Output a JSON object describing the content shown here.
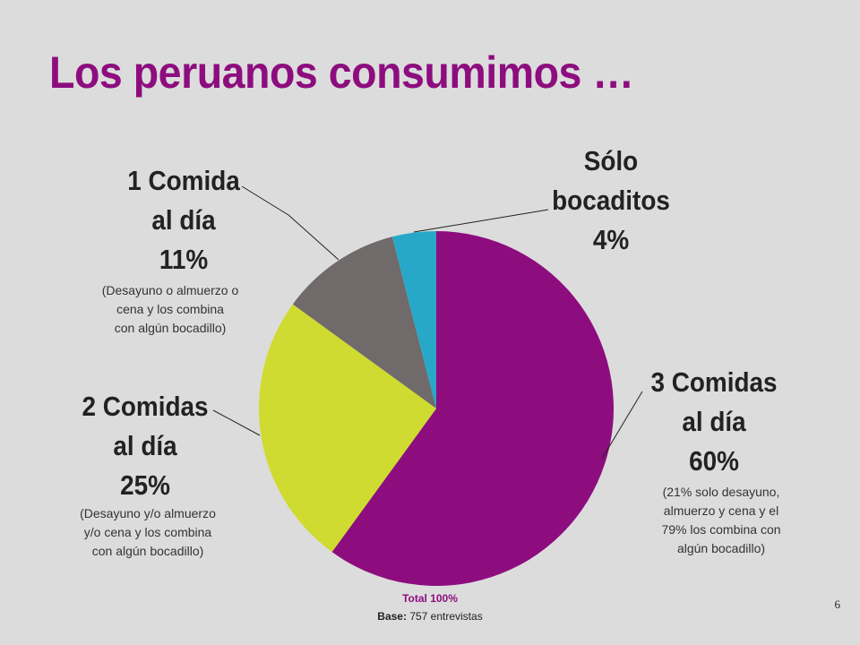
{
  "title": "Los peruanos consumimos …",
  "chart_data": {
    "type": "pie",
    "slices": [
      {
        "name": "3 Comidas al día",
        "value": 60,
        "color": "#8d0d7f"
      },
      {
        "name": "2 Comidas al día",
        "value": 25,
        "color": "#cfdb30"
      },
      {
        "name": "1 Comida al día",
        "value": 11,
        "color": "#706a6a"
      },
      {
        "name": "Sólo bocaditos",
        "value": 4,
        "color": "#27a8c9"
      }
    ]
  },
  "labels": {
    "three": {
      "line1": "3 Comidas",
      "line2": "al día",
      "pct": "60%",
      "note": [
        "(21% solo desayuno,",
        "almuerzo y cena y el",
        "79% los combina con",
        "algún bocadillo)"
      ]
    },
    "two": {
      "line1": "2 Comidas",
      "line2": "al día",
      "pct": "25%",
      "note": [
        "(Desayuno y/o almuerzo",
        "y/o cena y los combina",
        "con algún bocadillo)"
      ]
    },
    "one": {
      "line1": "1 Comida",
      "line2": "al día",
      "pct": "11%",
      "note": [
        "(Desayuno o almuerzo o",
        "cena y los combina",
        "con algún bocadillo)"
      ]
    },
    "snacks": {
      "line1": "Sólo",
      "line2": "bocaditos",
      "pct": "4%"
    }
  },
  "footer": {
    "total": "Total 100%",
    "base_label": "Base:",
    "base_value": "757 entrevistas",
    "page_number": "6"
  }
}
